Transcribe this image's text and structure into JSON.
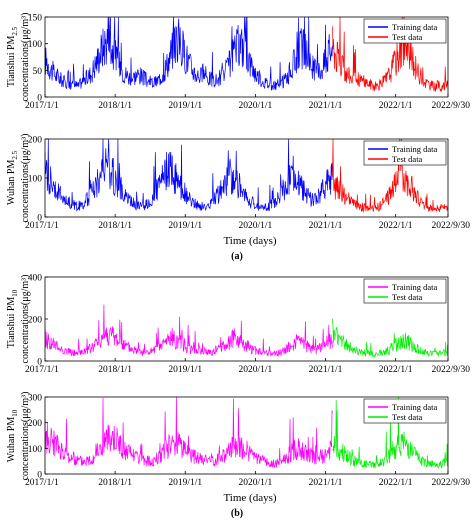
{
  "figure": {
    "panel_labels": [
      "(a)",
      "(b)"
    ],
    "xlabel": "Time (days)"
  },
  "chart_data": [
    {
      "type": "line",
      "ylabel_line1": "Tianshui PM",
      "ylabel_sub": "2.5",
      "ylabel_line2": "concentrations(μg/m³)",
      "xlabel": "",
      "ylim": [
        0,
        150
      ],
      "yticks": [
        0,
        50,
        100,
        150
      ],
      "x_start": "2017/1/1",
      "x_end": "2022/9/30",
      "xtick_labels": [
        "2017/1/1",
        "2018/1/1",
        "2019/1/1",
        "2020/1/1",
        "2021/1/1",
        "2022/1/1",
        "2022/9/30"
      ],
      "xtick_years": [
        0,
        1,
        2,
        3,
        4,
        5,
        5.747
      ],
      "split_year": 4.1,
      "legend": [
        "Training data",
        "Test data"
      ],
      "legend_position": "top-right",
      "series": [
        {
          "name": "Training data",
          "color": "#0000ff",
          "x_start_year": 0,
          "x_end_year": 4.1,
          "values": [
            70,
            62,
            50,
            42,
            38,
            32,
            28,
            25,
            22,
            24,
            20,
            28,
            32,
            38,
            45,
            58,
            72,
            88,
            98,
            110,
            95,
            82,
            70,
            55,
            45,
            40,
            36,
            38,
            42,
            40,
            35,
            30,
            28,
            26,
            30,
            38,
            48,
            62,
            80,
            95,
            110,
            98,
            85,
            72,
            58,
            48,
            42,
            40,
            44,
            38,
            34,
            30,
            32,
            36,
            40,
            52,
            65,
            78,
            90,
            100,
            92,
            80,
            65,
            52,
            42,
            35,
            30,
            26,
            22,
            20,
            22,
            25,
            28,
            36,
            46,
            58,
            72,
            88,
            92,
            82,
            68,
            55,
            50,
            48,
            55,
            70,
            85,
            95
          ]
        },
        {
          "name": "Test data",
          "color": "#ff0000",
          "x_start_year": 4.1,
          "x_end_year": 5.747,
          "values": [
            95,
            80,
            68,
            55,
            45,
            40,
            35,
            32,
            34,
            30,
            28,
            26,
            22,
            20,
            22,
            26,
            32,
            40,
            52,
            68,
            82,
            96,
            90,
            80,
            70,
            58,
            45,
            36,
            28,
            25,
            22,
            20,
            22,
            18,
            20,
            22
          ]
        }
      ]
    },
    {
      "type": "line",
      "ylabel_line1": "Wuhan PM",
      "ylabel_sub": "2.5",
      "ylabel_line2": "concentrations(μg/m³)",
      "xlabel": "Time (days)",
      "ylim": [
        0,
        200
      ],
      "yticks": [
        0,
        100,
        200
      ],
      "x_start": "2017/1/1",
      "x_end": "2022/9/30",
      "xtick_labels": [
        "2017/1/1",
        "2018/1/1",
        "2019/1/1",
        "2020/1/1",
        "2021/1/1",
        "2022/1/1",
        "2022/9/30"
      ],
      "xtick_years": [
        0,
        1,
        2,
        3,
        4,
        5,
        5.747
      ],
      "split_year": 4.1,
      "legend": [
        "Training data",
        "Test data"
      ],
      "legend_position": "top-right",
      "series": [
        {
          "name": "Training data",
          "color": "#0000ff",
          "x_start_year": 0,
          "x_end_year": 4.1,
          "values": [
            120,
            105,
            90,
            75,
            60,
            50,
            40,
            35,
            30,
            28,
            30,
            38,
            50,
            65,
            85,
            105,
            120,
            130,
            118,
            100,
            85,
            70,
            55,
            45,
            38,
            32,
            30,
            28,
            32,
            40,
            55,
            72,
            90,
            110,
            125,
            115,
            100,
            85,
            68,
            52,
            42,
            35,
            30,
            28,
            26,
            30,
            38,
            50,
            65,
            80,
            95,
            108,
            98,
            86,
            72,
            56,
            44,
            36,
            30,
            26,
            24,
            26,
            30,
            38,
            50,
            62,
            78,
            92,
            100,
            90,
            80,
            68,
            55,
            48,
            45,
            50,
            62,
            80,
            95,
            105
          ]
        },
        {
          "name": "Test data",
          "color": "#ff0000",
          "x_start_year": 4.1,
          "x_end_year": 5.747,
          "values": [
            85,
            80,
            72,
            62,
            50,
            42,
            36,
            30,
            28,
            25,
            22,
            20,
            22,
            24,
            28,
            36,
            48,
            62,
            80,
            100,
            120,
            110,
            95,
            80,
            62,
            48,
            38,
            30,
            25,
            22,
            20,
            22,
            24,
            26,
            28
          ]
        }
      ]
    },
    {
      "type": "line",
      "ylabel_line1": "Tianshui PM",
      "ylabel_sub": "10",
      "ylabel_line2": "concentrations(μg/m³)",
      "xlabel": "",
      "ylim": [
        0,
        400
      ],
      "yticks": [
        0,
        200,
        400
      ],
      "x_start": "2017/1/1",
      "x_end": "2022/9/30",
      "xtick_labels": [
        "2017/1/1",
        "2018/1/1",
        "2019/1/1",
        "2020/1/1",
        "2021/1/1",
        "2022/1/1",
        "2022/9/30"
      ],
      "xtick_years": [
        0,
        1,
        2,
        3,
        4,
        5,
        5.747
      ],
      "split_year": 4.1,
      "legend": [
        "Training data",
        "Test data"
      ],
      "legend_position": "top-right",
      "series": [
        {
          "name": "Training data",
          "color": "#ff00ff",
          "x_start_year": 0,
          "x_end_year": 4.1,
          "values": [
            110,
            95,
            80,
            68,
            58,
            50,
            44,
            40,
            38,
            40,
            44,
            52,
            64,
            80,
            100,
            118,
            130,
            120,
            105,
            90,
            76,
            64,
            56,
            50,
            46,
            42,
            40,
            44,
            50,
            62,
            78,
            96,
            110,
            104,
            92,
            80,
            68,
            58,
            52,
            48,
            46,
            44,
            42,
            48,
            56,
            68,
            82,
            96,
            108,
            100,
            88,
            76,
            64,
            54,
            46,
            40,
            36,
            34,
            32,
            36,
            42,
            52,
            66,
            80,
            92,
            86,
            76,
            66,
            60,
            58,
            62,
            74,
            90,
            110
          ]
        },
        {
          "name": "Test data",
          "color": "#00ee00",
          "x_start_year": 4.1,
          "x_end_year": 5.747,
          "values": [
            140,
            120,
            100,
            82,
            68,
            58,
            50,
            44,
            40,
            38,
            36,
            34,
            36,
            40,
            46,
            56,
            70,
            86,
            100,
            96,
            84,
            70,
            58,
            48,
            42,
            38,
            36,
            34,
            36,
            38,
            40
          ]
        }
      ]
    },
    {
      "type": "line",
      "ylabel_line1": "Wuhan PM",
      "ylabel_sub": "10",
      "ylabel_line2": "concentrations(μg/m³)",
      "xlabel": "Time (days)",
      "ylim": [
        0,
        300
      ],
      "yticks": [
        0,
        100,
        200,
        300
      ],
      "x_start": "2017/1/1",
      "x_end": "2022/9/30",
      "xtick_labels": [
        "2017/1/1",
        "2018/1/1",
        "2019/1/1",
        "2020/1/1",
        "2021/1/1",
        "2022/1/1",
        "2022/9/30"
      ],
      "xtick_years": [
        0,
        1,
        2,
        3,
        4,
        5,
        5.747
      ],
      "split_year": 4.1,
      "legend": [
        "Training data",
        "Test data"
      ],
      "legend_position": "top-right",
      "series": [
        {
          "name": "Training data",
          "color": "#ff00ff",
          "x_start_year": 0,
          "x_end_year": 4.1,
          "values": [
            150,
            135,
            120,
            105,
            90,
            78,
            68,
            60,
            55,
            52,
            56,
            64,
            78,
            96,
            118,
            135,
            145,
            130,
            112,
            96,
            82,
            70,
            62,
            56,
            52,
            50,
            54,
            62,
            76,
            94,
            112,
            125,
            118,
            104,
            90,
            78,
            68,
            60,
            54,
            50,
            48,
            52,
            60,
            74,
            90,
            106,
            118,
            110,
            98,
            86,
            72,
            60,
            52,
            46,
            42,
            40,
            44,
            52,
            64,
            80,
            94,
            100,
            92,
            82,
            72,
            66,
            64,
            70,
            84,
            100
          ]
        },
        {
          "name": "Test data",
          "color": "#00ee00",
          "x_start_year": 4.1,
          "x_end_year": 5.747,
          "values": [
            110,
            100,
            90,
            78,
            66,
            56,
            48,
            42,
            38,
            36,
            34,
            36,
            40,
            48,
            60,
            76,
            94,
            112,
            120,
            110,
            96,
            80,
            66,
            54,
            46,
            40,
            36,
            34,
            38,
            42,
            48
          ]
        }
      ]
    }
  ]
}
